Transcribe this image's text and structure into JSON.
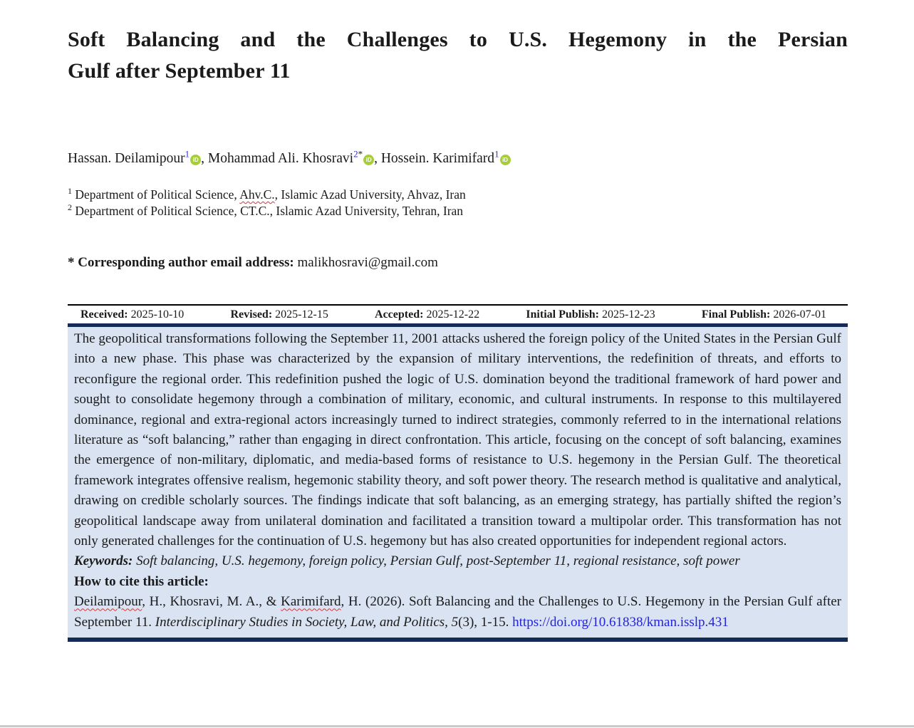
{
  "page": {
    "title_lines": [
      "Soft Balancing and the Challenges to U.S. Hegemony in the Persian",
      "Gulf after September 11"
    ]
  },
  "orcid_icon": "iD",
  "authors": [
    {
      "name": "Hassan. Deilamipour",
      "sup": "1",
      "mark": "",
      "separator": ", "
    },
    {
      "name": "Mohammad Ali. Khosravi",
      "sup": "2",
      "mark": "*",
      "separator": ", "
    },
    {
      "name": "Hossein. Karimifard",
      "sup": "1",
      "mark": "",
      "separator": ""
    }
  ],
  "affiliations": [
    {
      "sup": "1",
      "pre": "Department of Political Science, ",
      "misspelled": "Ahv.C.",
      "post": ", Islamic Azad University, Ahvaz, Iran"
    },
    {
      "sup": "2",
      "pre": "Department of Political Science, CT.C., Islamic Azad University, Tehran, Iran",
      "misspelled": "",
      "post": ""
    }
  ],
  "corresponding": {
    "label": "* Corresponding author email address:",
    "email": "malikhosravi@gmail.com"
  },
  "dates": [
    {
      "label": "Received:",
      "value": "2025-10-10"
    },
    {
      "label": "Revised:",
      "value": "2025-12-15"
    },
    {
      "label": "Accepted:",
      "value": "2025-12-22"
    },
    {
      "label": "Initial Publish:",
      "value": "2025-12-23"
    },
    {
      "label": "Final Publish:",
      "value": "2026-07-01"
    }
  ],
  "abstract": {
    "text": "The geopolitical transformations following the September 11, 2001 attacks ushered the foreign policy of the United States in the Persian Gulf into a new phase. This phase was characterized by the expansion of military interventions, the redefinition of threats, and efforts to reconfigure the regional order. This redefinition pushed the logic of U.S. domination beyond the traditional framework of hard power and sought to consolidate hegemony through a combination of military, economic, and cultural instruments. In response to this multilayered dominance, regional and extra-regional actors increasingly turned to indirect strategies, commonly referred to in the international relations literature as “soft balancing,” rather than engaging in direct confrontation. This article, focusing on the concept of soft balancing, examines the emergence of non-military, diplomatic, and media-based forms of resistance to U.S. hegemony in the Persian Gulf. The theoretical framework integrates offensive realism, hegemonic stability theory, and soft power theory. The research method is qualitative and analytical, drawing on credible scholarly sources. The findings indicate that soft balancing, as an emerging strategy, has partially shifted the region’s geopolitical landscape away from unilateral domination and facilitated a transition toward a multipolar order. This transformation has not only generated challenges for the continuation of U.S. hegemony but has also created opportunities for independent regional actors."
  },
  "keywords": {
    "label": "Keywords:",
    "text": " Soft balancing, U.S. hegemony, foreign policy, Persian Gulf, post-September 11, regional resistance, soft power"
  },
  "cite": {
    "heading": "How to cite this article:",
    "name1": "Deilamipour",
    "mid1": ", H., Khosravi, M. A., & ",
    "name2": "Karimifard",
    "mid2": ", H. (2026). Soft Balancing and the Challenges to U.S. Hegemony in the Persian Gulf after September 11. ",
    "journal": "Interdisciplinary Studies in Society, Law, and Politics, ",
    "volume": "5",
    "issue_pages": "(3), 1-15. ",
    "doi": "https://doi.org/10.61838/kman.isslp.431"
  },
  "colors": {
    "abstract_bg": "#dae3f1",
    "navy_border": "#152a55",
    "orcid_green": "#a6ce39",
    "link_blue": "#2323d9",
    "superscript_blue": "#2b35d4",
    "squiggle_red": "#e03131",
    "page_edge_grey": "#c9c9c9"
  }
}
